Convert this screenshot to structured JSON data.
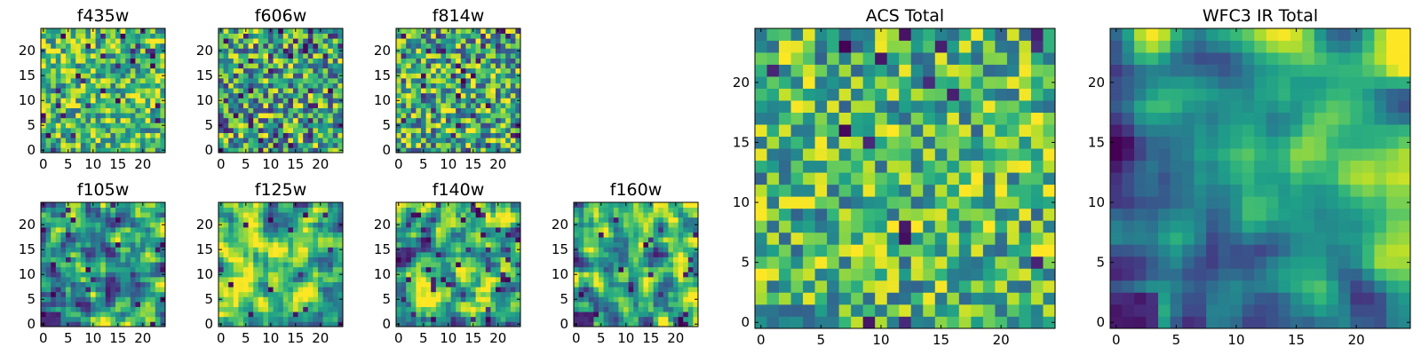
{
  "chart_data": [
    {
      "name": "f435w",
      "type": "heatmap",
      "title": "f435w",
      "grid_size": [
        25,
        25
      ],
      "colormap": "viridis",
      "xticks": [
        0,
        5,
        10,
        15,
        20
      ],
      "yticks": [
        0,
        5,
        10,
        15,
        20
      ],
      "xlim": [
        0,
        25
      ],
      "ylim": [
        0,
        25
      ],
      "seed": 11,
      "smooth": 0,
      "bias": 0.68,
      "contrast": 0.7,
      "dark": 0.05
    },
    {
      "name": "f606w",
      "type": "heatmap",
      "title": "f606w",
      "grid_size": [
        25,
        25
      ],
      "colormap": "viridis",
      "xticks": [
        0,
        5,
        10,
        15,
        20
      ],
      "yticks": [
        0,
        5,
        10,
        15,
        20
      ],
      "xlim": [
        0,
        25
      ],
      "ylim": [
        0,
        25
      ],
      "seed": 23,
      "smooth": 0,
      "bias": 0.6,
      "contrast": 0.85,
      "dark": 0.07
    },
    {
      "name": "f814w",
      "type": "heatmap",
      "title": "f814w",
      "grid_size": [
        25,
        25
      ],
      "colormap": "viridis",
      "xticks": [
        0,
        5,
        10,
        15,
        20
      ],
      "yticks": [
        0,
        5,
        10,
        15,
        20
      ],
      "xlim": [
        0,
        25
      ],
      "ylim": [
        0,
        25
      ],
      "seed": 37,
      "smooth": 0,
      "bias": 0.62,
      "contrast": 0.85,
      "dark": 0.06
    },
    {
      "name": "f105w",
      "type": "heatmap",
      "title": "f105w",
      "grid_size": [
        25,
        25
      ],
      "colormap": "viridis",
      "xticks": [
        0,
        5,
        10,
        15,
        20
      ],
      "yticks": [
        0,
        5,
        10,
        15,
        20
      ],
      "xlim": [
        0,
        25
      ],
      "ylim": [
        0,
        25
      ],
      "seed": 41,
      "smooth": 1,
      "bias": 0.6,
      "contrast": 1.3,
      "dark": 0.04,
      "corner": "bl"
    },
    {
      "name": "f125w",
      "type": "heatmap",
      "title": "f125w",
      "grid_size": [
        25,
        25
      ],
      "colormap": "viridis",
      "xticks": [
        0,
        5,
        10,
        15,
        20
      ],
      "yticks": [
        0,
        5,
        10,
        15,
        20
      ],
      "xlim": [
        0,
        25
      ],
      "ylim": [
        0,
        25
      ],
      "seed": 53,
      "smooth": 1,
      "bias": 0.66,
      "contrast": 1.2,
      "dark": 0.03
    },
    {
      "name": "f140w",
      "type": "heatmap",
      "title": "f140w",
      "grid_size": [
        25,
        25
      ],
      "colormap": "viridis",
      "xticks": [
        0,
        5,
        10,
        15,
        20
      ],
      "yticks": [
        0,
        5,
        10,
        15,
        20
      ],
      "xlim": [
        0,
        25
      ],
      "ylim": [
        0,
        25
      ],
      "seed": 67,
      "smooth": 1,
      "bias": 0.6,
      "contrast": 1.3,
      "dark": 0.05
    },
    {
      "name": "f160w",
      "type": "heatmap",
      "title": "f160w",
      "grid_size": [
        25,
        25
      ],
      "colormap": "viridis",
      "xticks": [
        0,
        5,
        10,
        15,
        20
      ],
      "yticks": [
        0,
        5,
        10,
        15,
        20
      ],
      "xlim": [
        0,
        25
      ],
      "ylim": [
        0,
        25
      ],
      "seed": 79,
      "smooth": 1,
      "bias": 0.58,
      "contrast": 1.3,
      "dark": 0.04,
      "corner": "bl"
    },
    {
      "name": "acs-total",
      "type": "heatmap",
      "title": "ACS Total",
      "grid_size": [
        25,
        25
      ],
      "colormap": "viridis",
      "xticks": [
        0,
        5,
        10,
        15,
        20
      ],
      "yticks": [
        0,
        5,
        10,
        15,
        20
      ],
      "xlim": [
        0,
        25
      ],
      "ylim": [
        0,
        25
      ],
      "seed": 97,
      "smooth": 0,
      "bias": 0.66,
      "contrast": 0.7,
      "dark": 0.03
    },
    {
      "name": "wfc3-ir-total",
      "type": "heatmap",
      "title": "WFC3 IR Total",
      "grid_size": [
        25,
        25
      ],
      "colormap": "viridis",
      "xticks": [
        0,
        5,
        10,
        15,
        20
      ],
      "yticks": [
        0,
        5,
        10,
        15,
        20
      ],
      "xlim": [
        0,
        25
      ],
      "ylim": [
        0,
        25
      ],
      "seed": 113,
      "smooth": 2,
      "bias": 0.55,
      "contrast": 1.0,
      "dark": 0.0,
      "gradient": 0.55,
      "corner": "bl"
    }
  ],
  "colormap_stops": [
    "#440154",
    "#482878",
    "#3e4989",
    "#31688e",
    "#26828e",
    "#1f9e89",
    "#35b779",
    "#6ece58",
    "#b5de2b",
    "#fde725"
  ]
}
